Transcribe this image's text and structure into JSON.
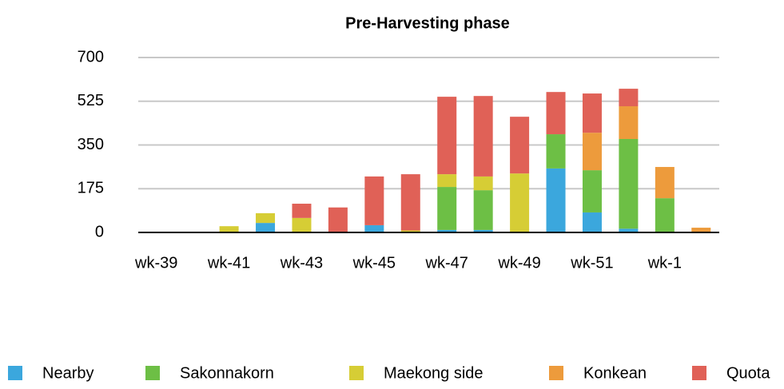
{
  "chart_data": {
    "type": "bar",
    "stacked": true,
    "title": "Pre-Harvesting phase",
    "categories": [
      "wk-39",
      null,
      "wk-41",
      null,
      "wk-43",
      null,
      "wk-45",
      null,
      "wk-47",
      null,
      "wk-49",
      null,
      "wk-51",
      null,
      "wk-1",
      null
    ],
    "series": [
      {
        "name": "Nearby",
        "color": "#3ba7dd",
        "values": [
          0,
          0,
          0,
          38,
          0,
          0,
          29,
          0,
          10,
          10,
          0,
          256,
          80,
          15,
          0,
          0
        ]
      },
      {
        "name": "Sakonnakorn",
        "color": "#6dbf45",
        "values": [
          0,
          0,
          0,
          0,
          0,
          0,
          0,
          0,
          172,
          159,
          0,
          137,
          169,
          359,
          137,
          0
        ]
      },
      {
        "name": "Maekong side",
        "color": "#d6cd35",
        "values": [
          0,
          0,
          25,
          39,
          58,
          0,
          0,
          8,
          51,
          55,
          236,
          0,
          0,
          0,
          0,
          0
        ]
      },
      {
        "name": "Konkean",
        "color": "#ed9b3c",
        "values": [
          0,
          0,
          0,
          0,
          0,
          0,
          0,
          0,
          0,
          0,
          0,
          0,
          150,
          131,
          125,
          19
        ]
      },
      {
        "name": "Quota",
        "color": "#e06157",
        "values": [
          0,
          0,
          0,
          0,
          57,
          100,
          195,
          225,
          310,
          322,
          227,
          169,
          157,
          70,
          0,
          0
        ]
      }
    ],
    "ylim": [
      0,
      700
    ],
    "yticks": [
      0,
      175,
      350,
      525,
      700
    ],
    "grid": true,
    "legend": "bottom"
  }
}
